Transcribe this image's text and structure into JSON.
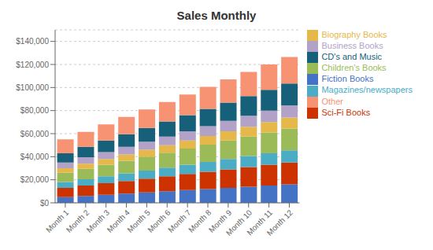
{
  "chart_data": {
    "type": "bar",
    "title": "Sales Monthly",
    "stacked": true,
    "grid": true,
    "legend": "right",
    "categories": [
      "Month 1",
      "Month 2",
      "Month 3",
      "Month 4",
      "Month 5",
      "Month 6",
      "Month 7",
      "Month 8",
      "Month 9",
      "Month 10",
      "Month 11",
      "Month 12"
    ],
    "series": [
      {
        "name": "Fiction Books",
        "color": "#4472C4",
        "values": [
          5000,
          6000,
          7000,
          8000,
          9000,
          10000,
          11000,
          12000,
          13000,
          14000,
          15000,
          16000
        ]
      },
      {
        "name": "Sci-Fi Books",
        "color": "#CC3300",
        "values": [
          8000,
          9000,
          10000,
          11000,
          12000,
          13000,
          14000,
          15000,
          16000,
          17000,
          18000,
          19000
        ]
      },
      {
        "name": "Magazines/newspapers",
        "color": "#4BACC6",
        "values": [
          5000,
          5500,
          6000,
          6500,
          7000,
          7500,
          8000,
          8500,
          9000,
          9500,
          10000,
          10500
        ]
      },
      {
        "name": "Children's Books",
        "color": "#9BBB59",
        "values": [
          8000,
          9000,
          10000,
          11000,
          12000,
          13000,
          14000,
          15000,
          16000,
          17000,
          18000,
          19000
        ]
      },
      {
        "name": "Biography Books",
        "color": "#E6B84A",
        "values": [
          4000,
          4500,
          5000,
          5500,
          6000,
          6500,
          7000,
          7500,
          8000,
          8500,
          9000,
          9500
        ]
      },
      {
        "name": "Business Books",
        "color": "#B3A2C7",
        "values": [
          5000,
          5500,
          6000,
          6500,
          7000,
          7500,
          8000,
          8500,
          9000,
          9500,
          10000,
          10500
        ]
      },
      {
        "name": "CD's and Music",
        "color": "#17607A",
        "values": [
          8000,
          9000,
          10000,
          11000,
          12000,
          13000,
          14000,
          15000,
          16000,
          17000,
          18000,
          19000
        ]
      },
      {
        "name": "Other",
        "color": "#F79272",
        "values": [
          12000,
          13000,
          14000,
          15000,
          16000,
          17000,
          18000,
          19000,
          20000,
          21000,
          22000,
          23000
        ]
      }
    ],
    "ylim": [
      0,
      150000
    ],
    "yticks": [
      {
        "value": 0,
        "label": "$0"
      },
      {
        "value": 20000,
        "label": "$20,000"
      },
      {
        "value": 40000,
        "label": "$40,000"
      },
      {
        "value": 60000,
        "label": "$60,000"
      },
      {
        "value": 80000,
        "label": "$80,000"
      },
      {
        "value": 100000,
        "label": "$100,000"
      },
      {
        "value": 120000,
        "label": "$120,000"
      },
      {
        "value": 140000,
        "label": "$140,000"
      }
    ]
  }
}
